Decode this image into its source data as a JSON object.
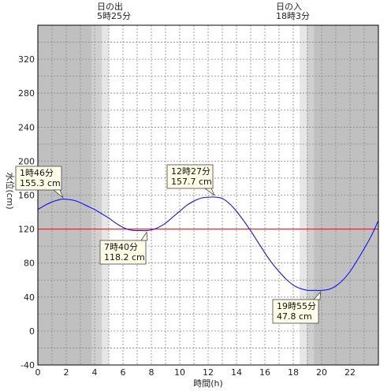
{
  "chart_data": {
    "type": "line",
    "xlabel": "時間(h)",
    "ylabel": "水位(cm)",
    "xlim": [
      0,
      24
    ],
    "ylim": [
      -40,
      360
    ],
    "x_ticks": [
      0,
      2,
      4,
      6,
      8,
      10,
      12,
      14,
      16,
      18,
      20,
      22
    ],
    "y_ticks": [
      -40,
      0,
      40,
      80,
      120,
      160,
      200,
      240,
      280,
      320
    ],
    "grid": true,
    "reference_line": {
      "value": 120,
      "color": "#ff0000"
    },
    "series": [
      {
        "color": "#0000ff",
        "x": [
          0,
          0.5,
          1,
          1.5,
          1.77,
          2.5,
          3,
          3.5,
          4,
          4.5,
          5,
          5.5,
          6,
          6.5,
          7,
          7.67,
          8,
          8.5,
          9,
          9.5,
          10,
          10.5,
          11,
          11.5,
          12,
          12.45,
          13,
          13.5,
          14,
          14.5,
          15,
          15.5,
          16,
          16.5,
          17,
          17.5,
          18,
          18.5,
          19,
          19.5,
          19.92,
          20.5,
          21,
          21.5,
          22,
          22.5,
          23,
          23.5,
          24
        ],
        "y": [
          143,
          148,
          152,
          154.5,
          155.3,
          154,
          151,
          147,
          143,
          138,
          133,
          127,
          122,
          119,
          118.3,
          118.2,
          119,
          122,
          127,
          134,
          141,
          148,
          153,
          156.5,
          157.5,
          157.7,
          156,
          150,
          141,
          130,
          118,
          105,
          92,
          80,
          70,
          61,
          54,
          50,
          48,
          47.9,
          47.8,
          49,
          53,
          60,
          70,
          83,
          97,
          112,
          130
        ]
      }
    ],
    "annotations": [
      {
        "time": "1時46分",
        "value": "155.3 cm",
        "x": 1.77,
        "y": 155.3
      },
      {
        "time": "7時40分",
        "value": "118.2 cm",
        "x": 7.67,
        "y": 118.2
      },
      {
        "time": "12時27分",
        "value": "157.7 cm",
        "x": 12.45,
        "y": 157.7
      },
      {
        "time": "19時55分",
        "value": "47.8 cm",
        "x": 19.92,
        "y": 47.8
      }
    ],
    "sunrise": {
      "label": "日の出",
      "time": "5時25分",
      "hour": 5.42
    },
    "sunset": {
      "label": "日の入",
      "time": "18時3分",
      "hour": 18.05
    },
    "colors": {
      "night": "#c0c0c0",
      "twilight_dark": "#d0d0d0",
      "twilight_light": "#e6e6e6",
      "day": "#ffffff",
      "grid": "#888888",
      "annotation_fill": "#ffffe8",
      "annotation_stroke": "#444444"
    }
  }
}
